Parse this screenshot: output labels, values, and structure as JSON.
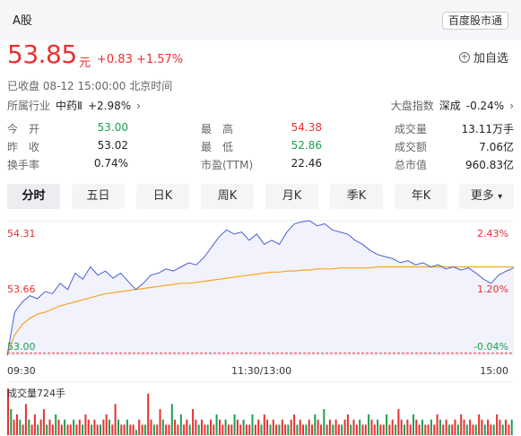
{
  "header": {
    "market_tag": "A股",
    "badge": "百度股市通"
  },
  "quote": {
    "price": "53.85",
    "unit": "元",
    "change": "+0.83 +1.57%",
    "add_watch": "加自选",
    "status": "已收盘  08-12 15:00:00  北京时间"
  },
  "industry": {
    "label": "所属行业",
    "name": "中药Ⅱ",
    "pct": "+2.98%"
  },
  "market_index": {
    "label": "大盘指数",
    "name": "深成",
    "pct": "-0.24%"
  },
  "stats": [
    {
      "l1": "今　开",
      "v1": "53.00",
      "l2": "最　高",
      "v2": "54.38",
      "l3": "成交量",
      "v3": "13.11万手"
    },
    {
      "l1": "昨　收",
      "v1": "53.02",
      "l2": "最　低",
      "v2": "52.86",
      "l3": "成交额",
      "v3": "7.06亿"
    },
    {
      "l1": "换手率",
      "v1": "0.74%",
      "l2": "市盈(TTM)",
      "v2": "22.46",
      "l3": "总市值",
      "v3": "960.83亿"
    }
  ],
  "tabs": [
    "分时",
    "五日",
    "日K",
    "周K",
    "月K",
    "季K",
    "年K",
    "更多"
  ],
  "active_tab": "分时",
  "colors": {
    "up": "#e93030",
    "down": "#1aa052",
    "price_line": "#4a5fd8",
    "avg_line": "#f5a623"
  },
  "chart_data": {
    "type": "line",
    "y_left_labels": [
      "54.31",
      "53.66",
      "53.00"
    ],
    "y_right_labels": [
      "2.43%",
      "1.20%",
      "-0.04%"
    ],
    "x_labels": [
      "09:30",
      "11:30/13:00",
      "15:00"
    ],
    "prev_close": 53.02,
    "ylim": [
      53.0,
      54.31
    ],
    "volume_label": "成交量724手",
    "price_series": [
      53.0,
      53.42,
      53.52,
      53.58,
      53.55,
      53.62,
      53.6,
      53.7,
      53.64,
      53.8,
      53.74,
      53.86,
      53.78,
      53.82,
      53.75,
      53.8,
      53.72,
      53.64,
      53.7,
      53.78,
      53.8,
      53.84,
      53.82,
      53.86,
      53.9,
      53.88,
      53.95,
      54.05,
      54.15,
      54.22,
      54.18,
      54.2,
      54.12,
      54.18,
      54.08,
      54.12,
      54.08,
      54.2,
      54.28,
      54.3,
      54.31,
      54.26,
      54.28,
      54.22,
      54.2,
      54.18,
      54.12,
      54.08,
      54.02,
      53.98,
      53.96,
      53.94,
      53.9,
      53.92,
      53.88,
      53.9,
      53.86,
      53.88,
      53.84,
      53.86,
      53.83,
      53.85,
      53.8,
      53.74,
      53.7,
      53.78,
      53.82,
      53.85
    ],
    "avg_series": [
      53.0,
      53.2,
      53.3,
      53.36,
      53.4,
      53.42,
      53.45,
      53.48,
      53.5,
      53.52,
      53.54,
      53.56,
      53.58,
      53.6,
      53.61,
      53.62,
      53.63,
      53.64,
      53.65,
      53.66,
      53.67,
      53.68,
      53.69,
      53.7,
      53.7,
      53.71,
      53.72,
      53.73,
      53.74,
      53.75,
      53.76,
      53.77,
      53.78,
      53.79,
      53.8,
      53.81,
      53.81,
      53.82,
      53.82,
      53.83,
      53.83,
      53.84,
      53.84,
      53.84,
      53.85,
      53.85,
      53.85,
      53.85,
      53.85,
      53.86,
      53.86,
      53.86,
      53.86,
      53.86,
      53.86,
      53.86,
      53.86,
      53.86,
      53.86,
      53.86,
      53.86,
      53.86,
      53.86,
      53.86,
      53.86,
      53.86,
      53.86,
      53.86
    ],
    "volume_series": [
      9,
      5,
      3,
      4,
      3,
      2,
      6,
      3,
      2,
      4,
      2,
      3,
      5,
      2,
      3,
      2,
      4,
      3,
      2,
      3,
      2,
      2,
      3,
      2,
      3,
      2,
      4,
      3,
      2,
      3,
      2,
      2,
      3,
      4,
      3,
      2,
      6,
      3,
      2,
      2,
      3,
      2,
      2,
      1,
      3,
      2,
      2,
      8,
      3,
      2,
      2,
      5,
      3,
      2,
      2,
      6,
      3,
      2,
      4,
      2,
      3,
      2,
      5,
      3,
      2,
      3,
      2,
      2,
      3,
      2,
      4,
      3,
      2,
      3,
      2,
      2,
      4,
      3,
      2,
      3,
      2,
      2,
      4,
      2,
      3,
      2,
      4,
      3,
      2,
      3,
      2,
      2,
      3,
      2,
      2,
      3,
      4,
      2,
      3,
      2,
      2,
      3,
      2,
      4,
      3,
      2,
      5,
      2,
      3,
      2,
      3,
      2,
      2,
      3,
      4,
      2,
      3,
      2,
      3,
      2,
      2,
      4,
      3,
      2,
      3,
      2,
      2,
      4,
      2,
      3,
      2,
      5,
      3,
      2,
      3,
      2,
      4,
      3,
      2,
      3,
      2,
      2,
      3,
      2,
      4,
      3,
      2,
      3,
      2,
      2,
      3,
      2,
      4,
      3,
      2,
      3,
      2,
      2,
      4,
      3,
      2,
      3,
      2,
      2,
      4,
      3,
      2,
      3,
      2,
      3
    ]
  }
}
